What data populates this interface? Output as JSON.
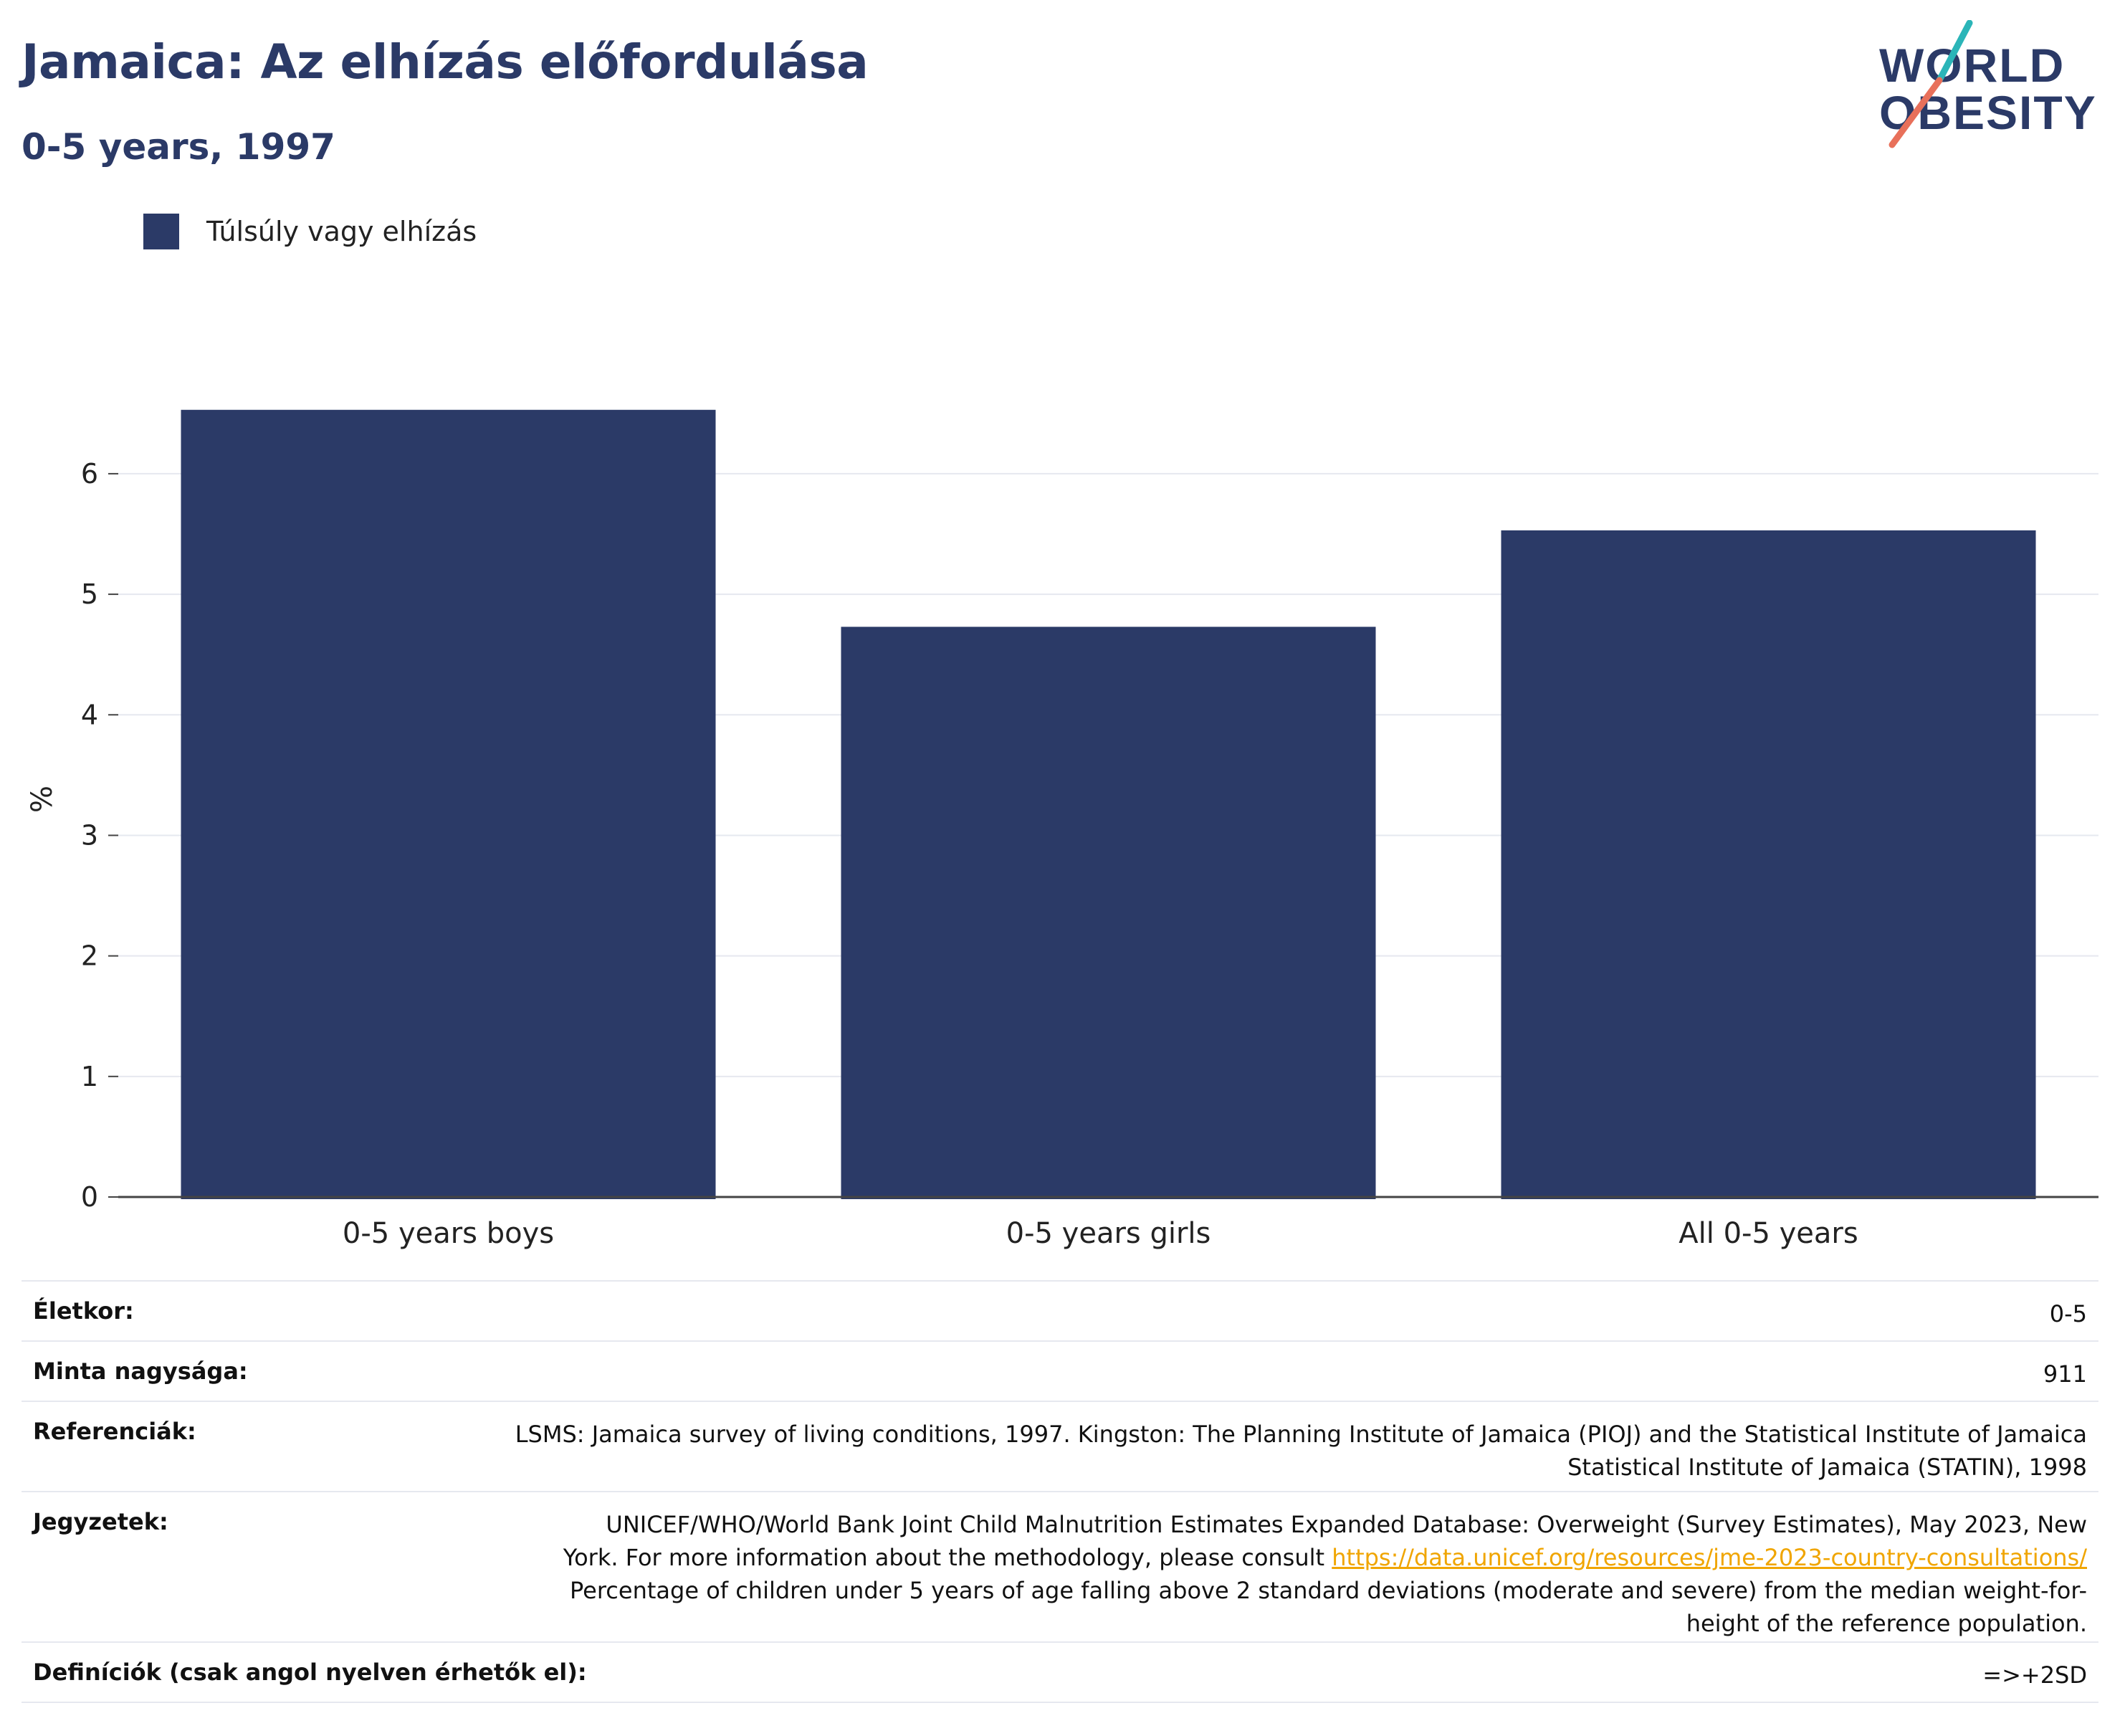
{
  "title": "Jamaica: Az elhízás előfordulása",
  "subtitle": "0-5 years, 1997",
  "logo": {
    "line1": "WORLD",
    "line2": "OBESITY"
  },
  "colors": {
    "bar": "#2b3a67",
    "title": "#2b3a67",
    "grid": "#e6e8ef",
    "link": "#f0a500"
  },
  "chart_data": {
    "type": "bar",
    "categories": [
      "0-5 years boys",
      "0-5 years girls",
      "All 0-5 years"
    ],
    "series": [
      {
        "name": "Túlsúly vagy elhízás",
        "values": [
          6.53,
          4.73,
          5.53
        ]
      }
    ],
    "ylabel": "%",
    "ylim": [
      0,
      6.6
    ],
    "yticks": [
      0,
      1,
      2,
      3,
      4,
      5,
      6
    ],
    "grid": true,
    "legend": "top-left"
  },
  "meta": {
    "age": {
      "label": "Életkor:",
      "value": "0-5"
    },
    "sample": {
      "label": "Minta nagysága:",
      "value": "911"
    },
    "references": {
      "label": "Referenciák:",
      "line1": "LSMS: Jamaica survey of living conditions, 1997. Kingston: The Planning Institute of Jamaica (PIOJ) and the Statistical Institute of Jamaica",
      "line2": "Statistical Institute of Jamaica (STATIN), 1998"
    },
    "notes": {
      "label": "Jegyzetek:",
      "line1": "UNICEF/WHO/World Bank Joint Child Malnutrition Estimates Expanded Database: Overweight (Survey Estimates), May 2023, New",
      "line2_prefix": "York. For more information about the methodology, please consult ",
      "link": "https://data.unicef.org/resources/jme-2023-country-consultations/",
      "line3": "Percentage of children under 5 years of age falling above 2 standard deviations (moderate and severe) from the median weight-for-",
      "line4": "height of the reference population."
    },
    "definitions": {
      "label": "Definíciók (csak angol nyelven érhetők el):",
      "value": "=>+2SD"
    }
  }
}
